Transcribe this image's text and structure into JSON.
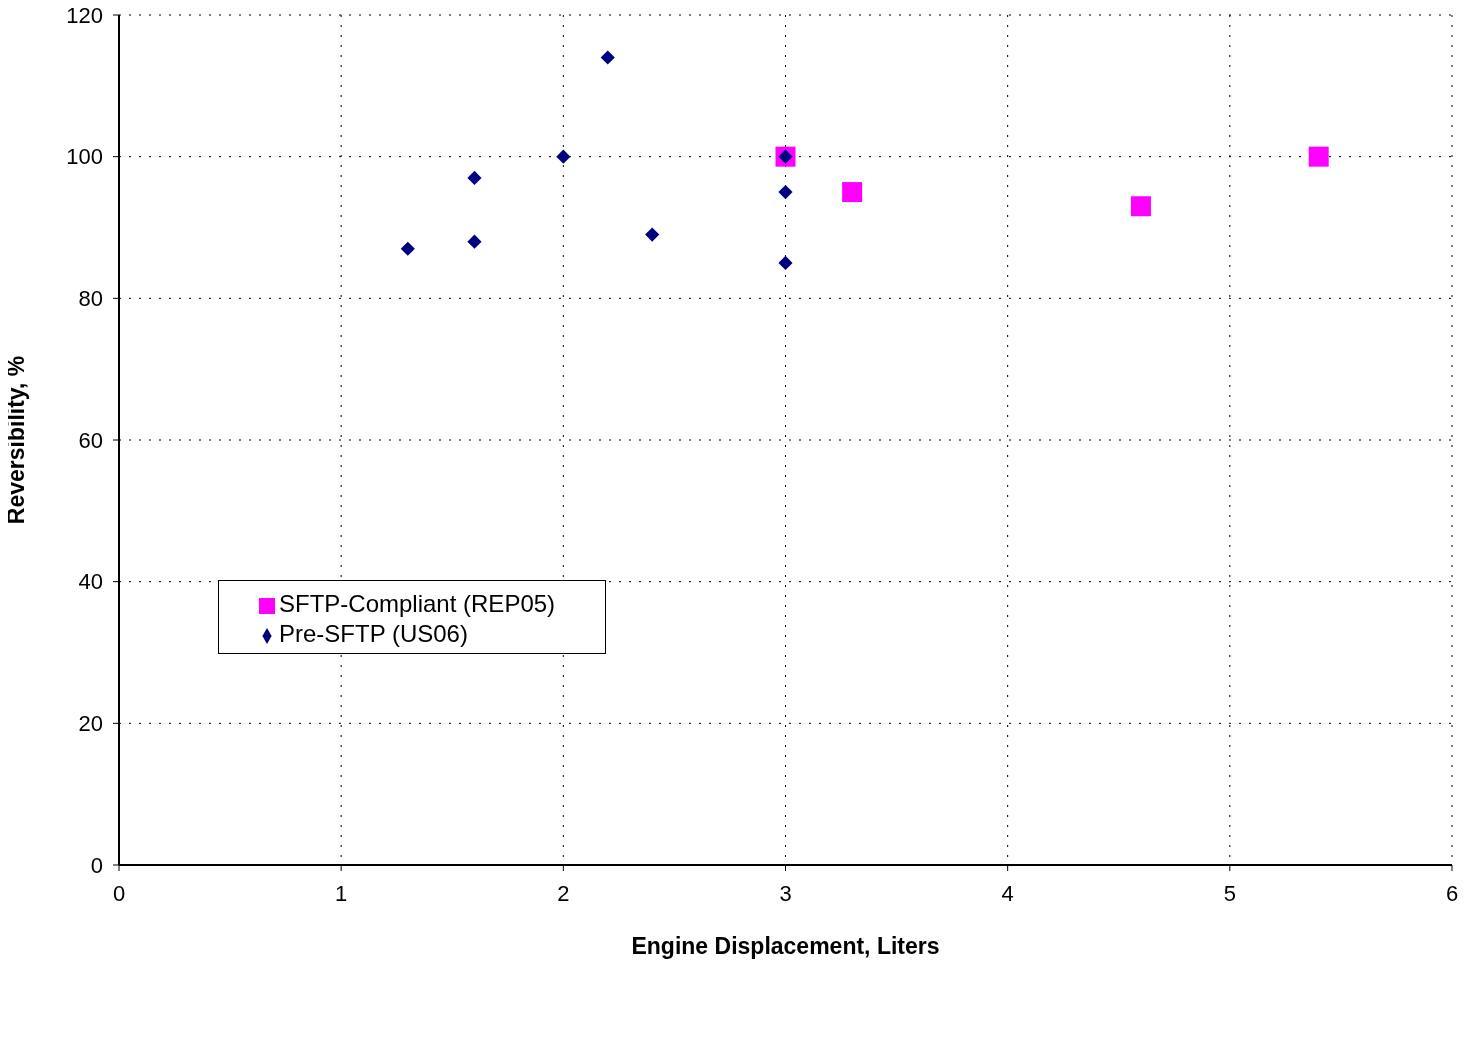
{
  "chart_data": {
    "type": "scatter",
    "xlabel": "Engine Displacement, Liters",
    "ylabel": "Reversibility, %",
    "xlim": [
      0,
      6
    ],
    "xticks": [
      0,
      1,
      2,
      3,
      4,
      5,
      6
    ],
    "ylim": [
      0,
      120
    ],
    "yticks": [
      0,
      20,
      40,
      60,
      80,
      100,
      120
    ],
    "grid": true,
    "legend": "left",
    "series": [
      {
        "name": "SFTP-Compliant (REP05)",
        "color": "#ff00ff",
        "marker": "square",
        "x": [
          3,
          3.3,
          4.6,
          5.4
        ],
        "values": [
          100,
          95,
          93,
          100
        ]
      },
      {
        "name": "Pre-SFTP (US06)",
        "color": "#000080",
        "marker": "diamond",
        "x": [
          1.3,
          1.6,
          1.6,
          2,
          2.2,
          2.4,
          3,
          3,
          3
        ],
        "values": [
          87,
          97,
          88,
          100,
          114,
          89,
          100,
          95,
          85
        ]
      }
    ]
  }
}
